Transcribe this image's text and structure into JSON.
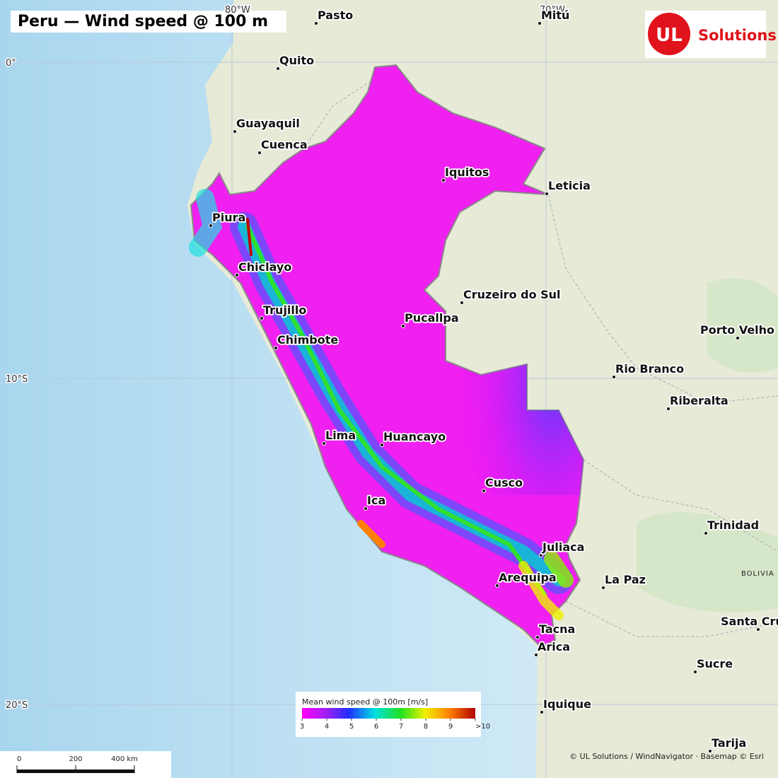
{
  "title": "Peru — Wind speed @ 100 m",
  "graticule": {
    "longitudes": [
      "80°W",
      "70°W"
    ],
    "latitudes": [
      "0°",
      "10°S",
      "20°S"
    ]
  },
  "logo": {
    "mark": "UL",
    "text": "Solutions"
  },
  "cities": [
    "Pasto",
    "Mitú",
    "Quito",
    "Guayaquil",
    "Cuenca",
    "Iquitos",
    "Leticia",
    "Piura",
    "Chiclayo",
    "Trujillo",
    "Chimbote",
    "Cruzeiro do Sul",
    "Pucallpa",
    "Porto Velho",
    "Rio Branco",
    "Riberalta",
    "Lima",
    "Huancayo",
    "Cusco",
    "Ica",
    "Trinidad",
    "Juliaca",
    "Arequipa",
    "La Paz",
    "Santa Cruz",
    "Tacna",
    "Arica",
    "Sucre",
    "Iquique",
    "Tarija"
  ],
  "regions": [
    "BOLIVIA"
  ],
  "legend": {
    "title": "Mean wind speed @ 100m [m/s]",
    "ticks": [
      3,
      4,
      5,
      6,
      7,
      8,
      9,
      {
        "value": 10,
        "label": ">10"
      }
    ]
  },
  "scale_bar": {
    "ticks": [
      0,
      200,
      {
        "value": 400,
        "label": "400 km"
      }
    ]
  },
  "attribution": "© UL Solutions / WindNavigator · Basemap © Esri"
}
